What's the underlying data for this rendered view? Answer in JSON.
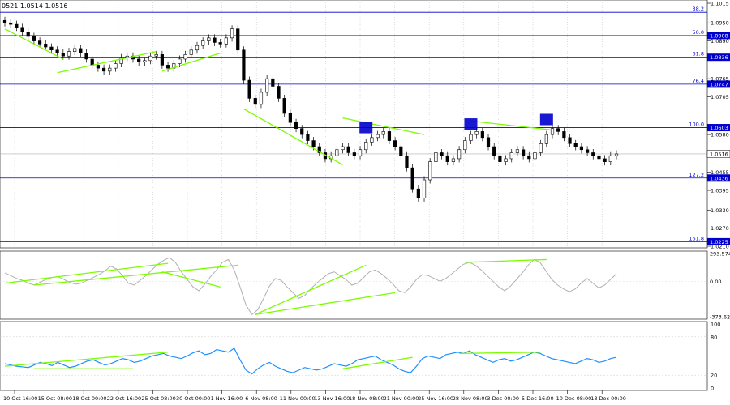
{
  "header": {
    "ohlc_text": "0521 1.0514 1.0516"
  },
  "chart_data": {
    "type": "line",
    "symbol_readout": "0521 1.0514 1.0516",
    "price_panel": {
      "ylim": [
        1.019,
        1.016
      ],
      "ylim_note": "price axis increases upward",
      "range": [
        1.021,
        1.1015
      ],
      "tick_labels": [
        "1.1015",
        "1.0950",
        "1.0890",
        "1.0765",
        "1.0705",
        "1.0580",
        "1.0455",
        "1.0395",
        "1.0330",
        "1.0270",
        "1.0210"
      ],
      "tick_values": [
        1.1015,
        1.095,
        1.089,
        1.0765,
        1.0705,
        1.058,
        1.0455,
        1.0395,
        1.033,
        1.027,
        1.021
      ],
      "fib_levels": [
        {
          "label": "38.2",
          "value": 1.0985,
          "tag": ""
        },
        {
          "label": "50.0",
          "value": 1.0908,
          "tag": "1.0908"
        },
        {
          "label": "61.8",
          "value": 1.0836,
          "tag": "1.0836"
        },
        {
          "label": "76.4",
          "value": 1.0747,
          "tag": "1.0747"
        },
        {
          "label": "100.0",
          "value": 1.0603,
          "tag": "1.0603"
        },
        {
          "label": "127.2",
          "value": 1.0436,
          "tag": "1.0436"
        },
        {
          "label": "161.8",
          "value": 1.0225,
          "tag": "1.0225"
        }
      ],
      "current_price": {
        "value": 1.0516,
        "tag": "1.0516"
      },
      "close_series": [
        1.095,
        1.0945,
        1.0935,
        1.092,
        1.0905,
        1.089,
        1.088,
        1.087,
        1.086,
        1.085,
        1.084,
        1.0855,
        1.0865,
        1.085,
        1.083,
        1.081,
        1.08,
        1.079,
        1.08,
        1.0815,
        1.0835,
        1.084,
        1.083,
        1.082,
        1.0825,
        1.084,
        1.0845,
        1.081,
        1.08,
        1.0815,
        1.083,
        1.0845,
        1.086,
        1.0875,
        1.089,
        1.09,
        1.0885,
        1.088,
        1.09,
        1.093,
        1.086,
        1.076,
        1.07,
        1.068,
        1.072,
        1.0765,
        1.074,
        1.07,
        1.065,
        1.062,
        1.06,
        1.058,
        1.056,
        1.054,
        1.052,
        1.05,
        1.051,
        1.053,
        1.054,
        1.052,
        1.051,
        1.053,
        1.0555,
        1.057,
        1.058,
        1.059,
        1.056,
        1.054,
        1.051,
        1.047,
        1.04,
        1.037,
        1.043,
        1.049,
        1.052,
        1.051,
        1.049,
        1.05,
        1.053,
        1.056,
        1.058,
        1.059,
        1.057,
        1.054,
        1.051,
        1.049,
        1.05,
        1.052,
        1.053,
        1.051,
        1.05,
        1.052,
        1.055,
        1.058,
        1.06,
        1.059,
        1.057,
        1.055,
        1.054,
        1.053,
        1.052,
        1.051,
        1.05,
        1.049,
        1.051,
        1.0516
      ],
      "pattern_boxes": [
        {
          "x_index": 62,
          "value": 1.0603
        },
        {
          "x_index": 80,
          "value": 1.0615
        },
        {
          "x_index": 93,
          "value": 1.063
        }
      ]
    },
    "cci_panel": {
      "tick_labels": [
        "293.5745",
        "0.00",
        "-373.629"
      ],
      "tick_values": [
        293.5745,
        0.0,
        -373.629
      ],
      "ylim": [
        -373.629,
        293.5745
      ],
      "series": [
        {
          "color": "#b0b0b0",
          "values": [
            90,
            60,
            30,
            10,
            -20,
            -40,
            -10,
            20,
            40,
            50,
            20,
            -10,
            -30,
            -20,
            10,
            40,
            70,
            110,
            160,
            130,
            60,
            -20,
            -40,
            10,
            60,
            120,
            180,
            220,
            250,
            200,
            100,
            20,
            -60,
            -100,
            -30,
            50,
            120,
            200,
            230,
            120,
            -60,
            -250,
            -350,
            -300,
            -180,
            -50,
            30,
            10,
            -60,
            -120,
            -180,
            -150,
            -80,
            -20,
            30,
            80,
            100,
            60,
            20,
            -40,
            -20,
            40,
            100,
            120,
            80,
            30,
            -30,
            -100,
            -120,
            -60,
            20,
            70,
            60,
            30,
            0,
            30,
            80,
            130,
            180,
            200,
            170,
            120,
            60,
            0,
            -60,
            -100,
            -50,
            20,
            90,
            170,
            230,
            200,
            110,
            20,
            -40,
            -80,
            -110,
            -80,
            -20,
            30,
            -20,
            -70,
            -40,
            20,
            80
          ]
        }
      ]
    },
    "rsi_panel": {
      "tick_labels": [
        "100",
        "80",
        "20",
        "0"
      ],
      "tick_values": [
        100,
        80,
        20,
        0
      ],
      "ylim": [
        0,
        100
      ],
      "series": [
        {
          "color": "#1e90ff",
          "values": [
            38,
            36,
            34,
            33,
            32,
            36,
            40,
            38,
            35,
            40,
            36,
            32,
            34,
            38,
            42,
            44,
            40,
            36,
            38,
            42,
            46,
            44,
            40,
            42,
            46,
            50,
            52,
            54,
            50,
            48,
            46,
            50,
            55,
            58,
            52,
            54,
            60,
            58,
            56,
            62,
            44,
            28,
            22,
            30,
            36,
            40,
            34,
            30,
            26,
            24,
            28,
            32,
            30,
            28,
            30,
            34,
            38,
            36,
            34,
            38,
            44,
            46,
            48,
            50,
            44,
            40,
            36,
            30,
            26,
            24,
            34,
            46,
            50,
            48,
            46,
            52,
            54,
            56,
            54,
            58,
            52,
            48,
            44,
            40,
            44,
            46,
            42,
            44,
            48,
            52,
            56,
            54,
            50,
            46,
            44,
            42,
            40,
            38,
            42,
            46,
            44,
            40,
            42,
            46,
            48
          ]
        }
      ]
    },
    "time_axis": [
      "10 Oct 16:00",
      "15 Oct 08:00",
      "18 Oct 00:00",
      "22 Oct 16:00",
      "25 Oct 08:00",
      "30 Oct 00:00",
      "1 Nov 16:00",
      "6 Nov 08:00",
      "11 Nov 00:00",
      "13 Nov 16:00",
      "18 Nov 08:00",
      "21 Nov 00:00",
      "25 Nov 16:00",
      "28 Nov 08:00",
      "3 Dec 00:00",
      "5 Dec 16:00",
      "10 Dec 08:00",
      "13 Dec 00:00"
    ],
    "divergence_lines_price": [
      [
        [
          0,
          1.093
        ],
        [
          10,
          1.083
        ]
      ],
      [
        [
          9,
          1.0785
        ],
        [
          26,
          1.0855
        ]
      ],
      [
        [
          27,
          1.079
        ],
        [
          37,
          1.085
        ]
      ],
      [
        [
          41,
          1.0665
        ],
        [
          58,
          1.048
        ]
      ],
      [
        [
          58,
          1.0635
        ],
        [
          72,
          1.058
        ]
      ],
      [
        [
          80,
          1.0625
        ],
        [
          94,
          1.0595
        ]
      ]
    ],
    "divergence_lines_cci": [
      [
        [
          0,
          -20
        ],
        [
          28,
          190
        ]
      ],
      [
        [
          5,
          -40
        ],
        [
          40,
          170
        ]
      ],
      [
        [
          27,
          100
        ],
        [
          37,
          -60
        ]
      ],
      [
        [
          43,
          -350
        ],
        [
          62,
          170
        ]
      ],
      [
        [
          43,
          -350
        ],
        [
          67,
          -120
        ]
      ],
      [
        [
          79,
          200
        ],
        [
          93,
          230
        ]
      ]
    ],
    "divergence_lines_rsi": [
      [
        [
          0,
          34
        ],
        [
          28,
          56
        ]
      ],
      [
        [
          5,
          30
        ],
        [
          22,
          30
        ]
      ],
      [
        [
          58,
          30
        ],
        [
          70,
          48
        ]
      ],
      [
        [
          78,
          54
        ],
        [
          92,
          56
        ]
      ]
    ]
  },
  "colors": {
    "fib_line": "#0000cc",
    "divergence": "#7cfc00",
    "tag_bg": "#0000cc",
    "current_tag_bg": "#ffffff",
    "cci_line": "#b0b0b0",
    "rsi_line": "#1e90ff",
    "pattern_box": "#0000cc"
  }
}
